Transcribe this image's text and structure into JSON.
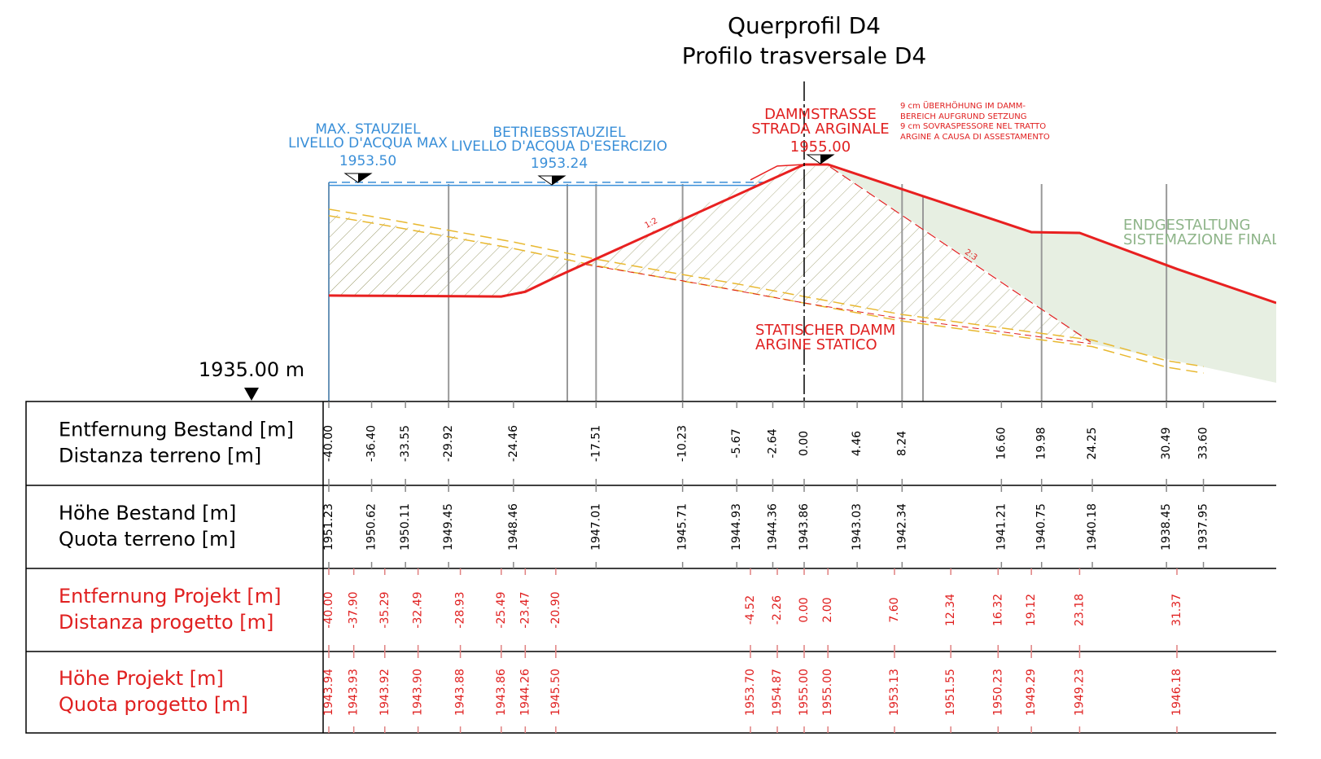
{
  "title": [
    "Querprofil D4",
    "Profilo trasversale D4"
  ],
  "max_level": [
    "MAX. STAUZIEL",
    "LIVELLO D'ACQUA MAX",
    "1953.50"
  ],
  "operating_level": [
    "BETRIEBSSTAUZIEL",
    "LIVELLO D'ACQUA D'ESERCIZIO",
    "1953.24"
  ],
  "dam_road": [
    "DAMMSTRASSE",
    "STRADA ARGINALE",
    "1955.00"
  ],
  "note": [
    "9 cm ÜBERHÖHUNG IM DAMM-",
    "BEREICH AUFGRUND SETZUNG",
    "9 cm SOVRASPESSORE NEL TRATTO",
    "ARGINE A CAUSA DI ASSESTAMENTO"
  ],
  "final_shape": [
    "ENDGESTALTUNG",
    "SISTEMAZIONE FINALE"
  ],
  "static_dam": [
    "STATISCHER DAMM",
    "ARGINE STATICO"
  ],
  "slopes": [
    "1:2",
    "2:3"
  ],
  "datum": "1935.00 m",
  "table": {
    "rows": [
      {
        "label": [
          "Entfernung Bestand [m]",
          "Distanza terreno [m]"
        ],
        "values": [
          "-40.00",
          "-36.40",
          "-33.55",
          "-29.92",
          "-24.46",
          "-17.51",
          "-10.23",
          "-5.67",
          "-2.64",
          "0.00",
          "4.46",
          "8.24",
          "16.60",
          "19.98",
          "24.25",
          "30.49",
          "33.60"
        ]
      },
      {
        "label": [
          "Höhe Bestand [m]",
          "Quota terreno [m]"
        ],
        "values": [
          "1951.23",
          "1950.62",
          "1950.11",
          "1949.45",
          "1948.46",
          "1947.01",
          "1945.71",
          "1944.93",
          "1944.36",
          "1943.86",
          "1943.03",
          "1942.34",
          "1941.21",
          "1940.75",
          "1940.18",
          "1938.45",
          "1937.95"
        ]
      },
      {
        "label": [
          "Entfernung Projekt [m]",
          "Distanza progetto [m]"
        ],
        "values": [
          "-40.00",
          "-37.90",
          "-35.29",
          "-32.49",
          "-28.93",
          "-25.49",
          "-23.47",
          "-20.90",
          "-4.52",
          "-2.26",
          "0.00",
          "2.00",
          "7.60",
          "12.34",
          "16.32",
          "19.12",
          "23.18",
          "31.37"
        ]
      },
      {
        "label": [
          "Höhe Projekt [m]",
          "Quota progetto [m]"
        ],
        "values": [
          "1943.94",
          "1943.93",
          "1943.92",
          "1943.90",
          "1943.88",
          "1943.86",
          "1944.26",
          "1945.50",
          "1953.70",
          "1954.87",
          "1955.00",
          "1955.00",
          "1953.13",
          "1951.55",
          "1950.23",
          "1949.29",
          "1949.23",
          "1946.18"
        ]
      }
    ]
  }
}
